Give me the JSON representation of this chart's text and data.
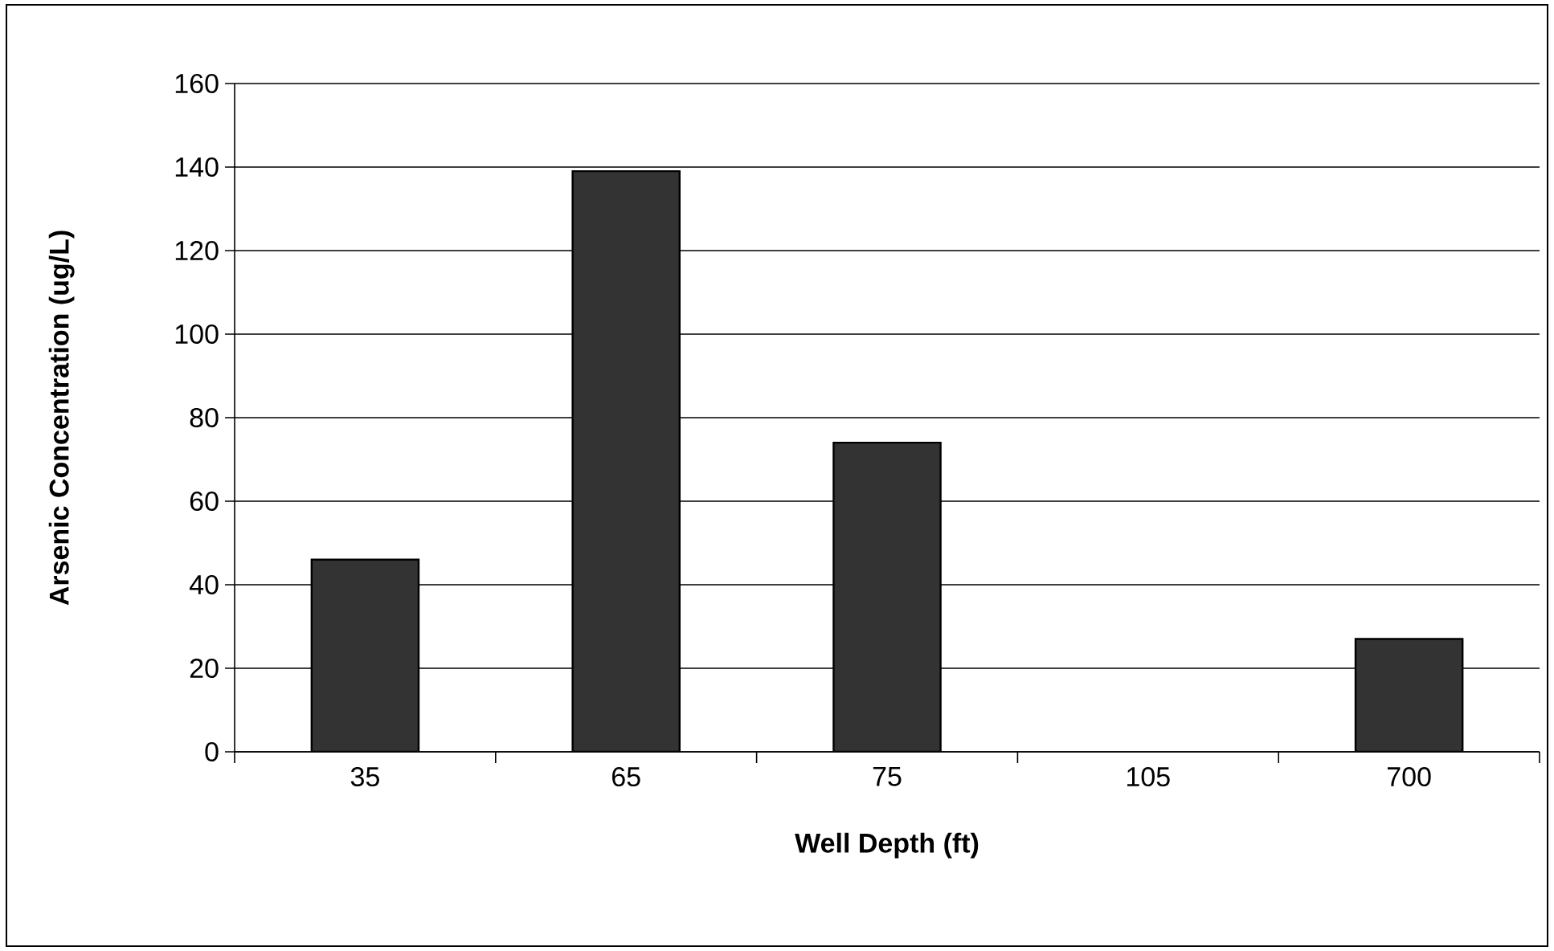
{
  "chart_data": {
    "type": "bar",
    "xlabel": "Well Depth (ft)",
    "ylabel": "Arsenic Concentration (ug/L)",
    "categories": [
      "35",
      "65",
      "75",
      "105",
      "700"
    ],
    "values": [
      46,
      139,
      74,
      null,
      27
    ],
    "color": "#333333",
    "ylim": [
      0,
      160
    ],
    "yticks": [
      0,
      20,
      40,
      60,
      80,
      100,
      120,
      140,
      160
    ],
    "grid": "y"
  }
}
